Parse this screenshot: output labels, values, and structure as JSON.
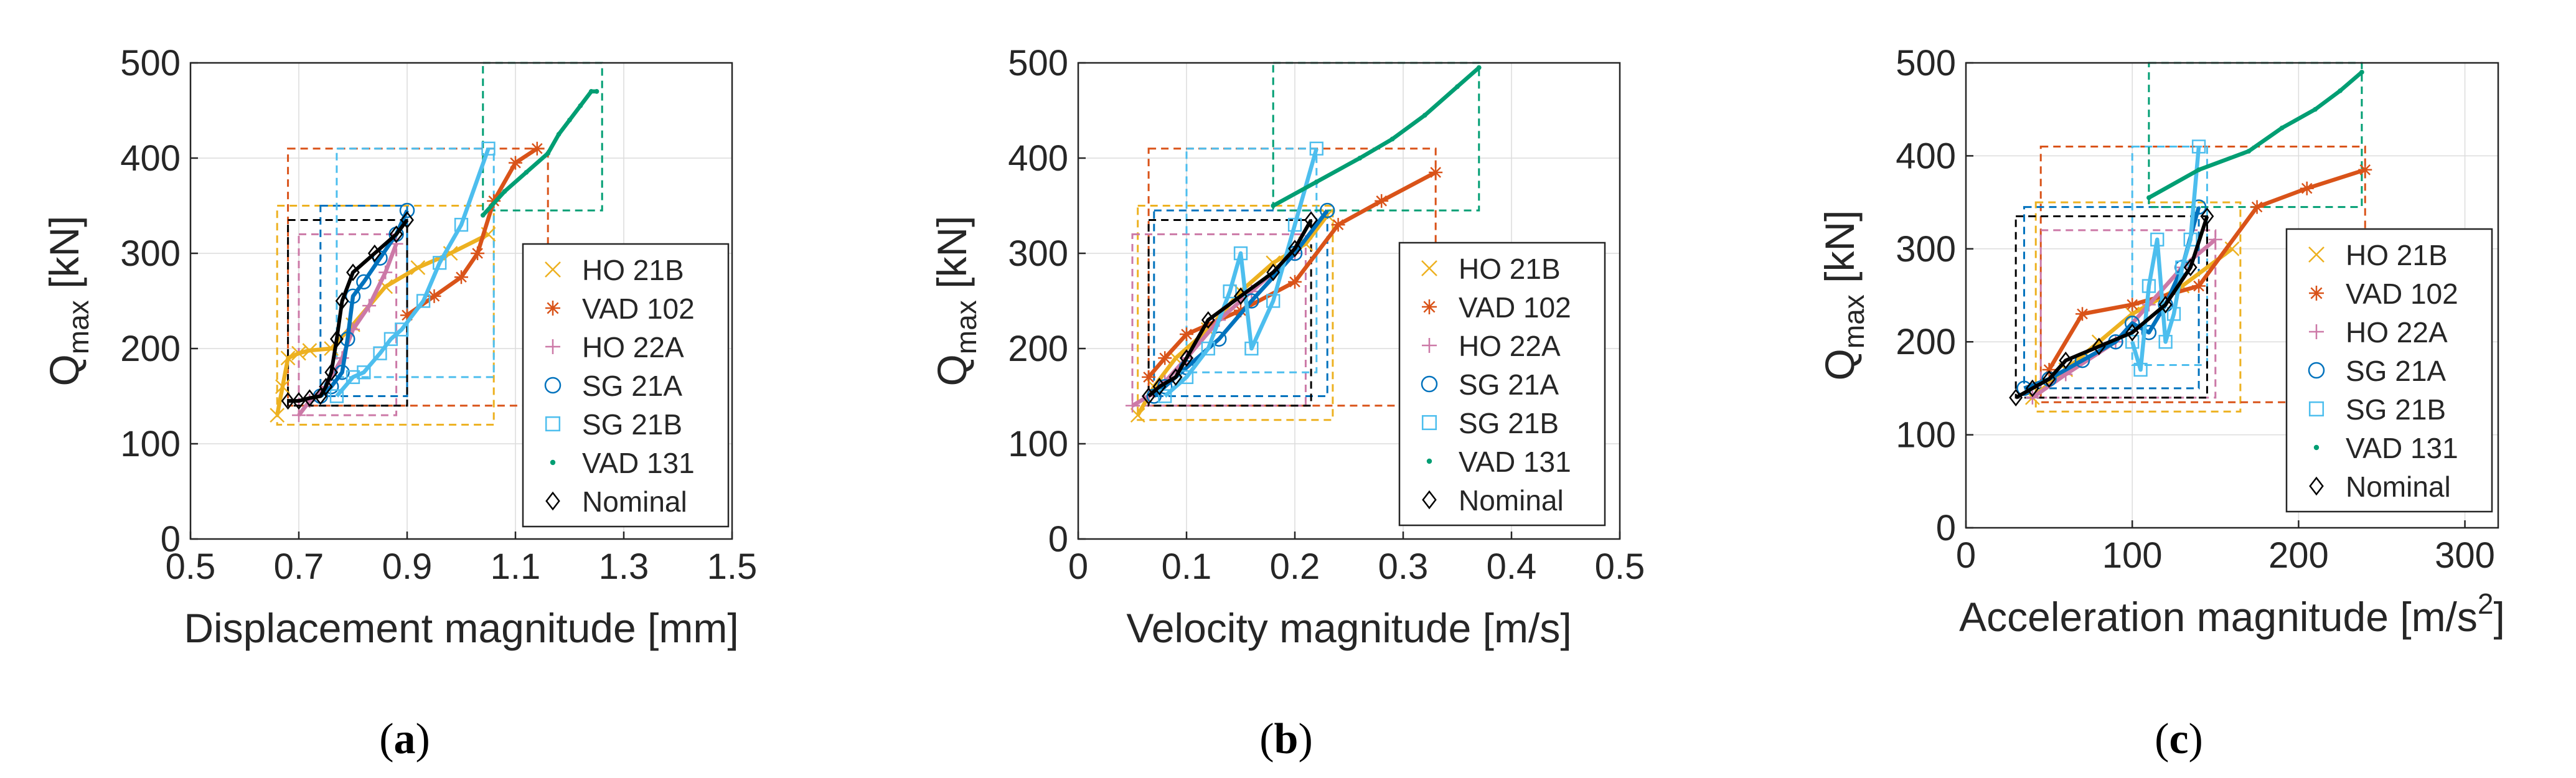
{
  "colors": {
    "HO 21B": "#EDB120",
    "VAD 102": "#D95319",
    "HO 22A": "#CC79A7",
    "SG 21A": "#0072BD",
    "SG 21B": "#4DBEEE",
    "VAD 131": "#009E73",
    "Nominal": "#000000",
    "axis": "#262626",
    "grid": "#dcdcdc"
  },
  "chart_data": [
    {
      "type": "line",
      "panel": "a",
      "caption": {
        "pre": "(",
        "letter": "a",
        "post": ")"
      },
      "ylabel": {
        "main": "Q",
        "sub": "max",
        "unit": " [kN]"
      },
      "xlabel": "Displacement magnitude [mm]",
      "xlim": [
        0.5,
        1.5
      ],
      "ylim": [
        0,
        500
      ],
      "xticks": [
        0.5,
        0.7,
        0.9,
        1.1,
        1.3,
        1.5
      ],
      "xtick_labels": [
        "0.5",
        "0.7",
        "0.9",
        "1.1",
        "1.3",
        "1.5"
      ],
      "yticks": [
        0,
        100,
        200,
        300,
        400,
        500
      ],
      "ytick_labels": [
        "0",
        "100",
        "200",
        "300",
        "400",
        "500"
      ],
      "grid": true,
      "legend_position": "lower-right",
      "series": [
        {
          "name": "HO 21B",
          "marker": "x",
          "x": [
            0.66,
            0.67,
            0.68,
            0.7,
            0.72,
            0.76,
            0.8,
            0.86,
            0.92,
            0.98,
            1.05
          ],
          "y": [
            130,
            160,
            190,
            195,
            198,
            200,
            225,
            265,
            285,
            300,
            320
          ],
          "box": [
            0.66,
            1.06,
            120,
            350
          ]
        },
        {
          "name": "VAD 102",
          "marker": "asterisk",
          "x": [
            0.9,
            0.95,
            1.0,
            1.03,
            1.06,
            1.1,
            1.14
          ],
          "y": [
            235,
            255,
            275,
            300,
            355,
            395,
            410
          ],
          "box": [
            0.68,
            1.16,
            140,
            410
          ]
        },
        {
          "name": "HO 22A",
          "marker": "plus",
          "x": [
            0.7,
            0.72,
            0.75,
            0.78,
            0.8,
            0.83,
            0.86,
            0.88
          ],
          "y": [
            130,
            145,
            160,
            190,
            220,
            245,
            280,
            310
          ],
          "box": [
            0.7,
            0.88,
            130,
            320
          ]
        },
        {
          "name": "SG 21A",
          "marker": "circle",
          "x": [
            0.74,
            0.76,
            0.78,
            0.79,
            0.8,
            0.82,
            0.85,
            0.88,
            0.9
          ],
          "y": [
            150,
            160,
            175,
            210,
            255,
            270,
            295,
            320,
            345
          ],
          "box": [
            0.74,
            0.9,
            150,
            350
          ]
        },
        {
          "name": "SG 21B",
          "marker": "square",
          "x": [
            0.77,
            0.8,
            0.82,
            0.85,
            0.87,
            0.89,
            0.93,
            0.96,
            1.0,
            1.05
          ],
          "y": [
            150,
            170,
            175,
            195,
            210,
            220,
            250,
            290,
            330,
            410
          ],
          "box": [
            0.77,
            1.06,
            170,
            410
          ]
        },
        {
          "name": "VAD 131",
          "marker": "dot",
          "x": [
            1.04,
            1.08,
            1.12,
            1.16,
            1.18,
            1.2,
            1.22,
            1.24,
            1.25
          ],
          "y": [
            340,
            365,
            385,
            405,
            425,
            440,
            455,
            470,
            470
          ],
          "box": [
            1.04,
            1.26,
            345,
            500
          ]
        },
        {
          "name": "Nominal",
          "marker": "diamond",
          "x": [
            0.68,
            0.7,
            0.72,
            0.74,
            0.75,
            0.76,
            0.77,
            0.78,
            0.8,
            0.84,
            0.88,
            0.9
          ],
          "y": [
            145,
            145,
            148,
            150,
            160,
            175,
            210,
            250,
            280,
            300,
            320,
            335
          ],
          "box": [
            0.68,
            0.9,
            140,
            335
          ]
        }
      ]
    },
    {
      "type": "line",
      "panel": "b",
      "caption": {
        "pre": "(",
        "letter": "b",
        "post": ")"
      },
      "ylabel": {
        "main": "Q",
        "sub": "max",
        "unit": " [kN]"
      },
      "xlabel": "Velocity magnitude [m/s]",
      "xlim": [
        0,
        0.5
      ],
      "ylim": [
        0,
        500
      ],
      "xticks": [
        0,
        0.1,
        0.2,
        0.3,
        0.4,
        0.5
      ],
      "xtick_labels": [
        "0",
        "0.1",
        "0.2",
        "0.3",
        "0.4",
        "0.5"
      ],
      "yticks": [
        0,
        100,
        200,
        300,
        400,
        500
      ],
      "ytick_labels": [
        "0",
        "100",
        "200",
        "300",
        "400",
        "500"
      ],
      "grid": true,
      "legend_position": "lower-right",
      "series": [
        {
          "name": "HO 21B",
          "marker": "x",
          "x": [
            0.055,
            0.07,
            0.09,
            0.12,
            0.15,
            0.18,
            0.21,
            0.23
          ],
          "y": [
            130,
            160,
            190,
            220,
            260,
            290,
            310,
            340
          ],
          "box": [
            0.055,
            0.235,
            125,
            350
          ]
        },
        {
          "name": "VAD 102",
          "marker": "asterisk",
          "x": [
            0.065,
            0.08,
            0.1,
            0.15,
            0.2,
            0.24,
            0.28,
            0.33
          ],
          "y": [
            170,
            190,
            215,
            240,
            270,
            330,
            355,
            385
          ],
          "box": [
            0.065,
            0.33,
            140,
            410
          ]
        },
        {
          "name": "HO 22A",
          "marker": "plus",
          "x": [
            0.05,
            0.065,
            0.08,
            0.1,
            0.13,
            0.16,
            0.2
          ],
          "y": [
            140,
            150,
            165,
            190,
            230,
            260,
            300
          ],
          "box": [
            0.05,
            0.21,
            140,
            320
          ]
        },
        {
          "name": "SG 21A",
          "marker": "circle",
          "x": [
            0.07,
            0.08,
            0.1,
            0.13,
            0.16,
            0.2,
            0.23
          ],
          "y": [
            150,
            160,
            180,
            210,
            250,
            300,
            345
          ],
          "box": [
            0.07,
            0.23,
            150,
            345
          ]
        },
        {
          "name": "SG 21B",
          "marker": "square",
          "x": [
            0.08,
            0.1,
            0.12,
            0.14,
            0.15,
            0.16,
            0.18,
            0.2,
            0.22
          ],
          "y": [
            150,
            170,
            200,
            260,
            300,
            200,
            250,
            330,
            410
          ],
          "box": [
            0.1,
            0.22,
            175,
            410
          ]
        },
        {
          "name": "VAD 131",
          "marker": "dot",
          "x": [
            0.18,
            0.22,
            0.26,
            0.29,
            0.32,
            0.35,
            0.37
          ],
          "y": [
            350,
            375,
            400,
            420,
            445,
            475,
            495
          ],
          "box": [
            0.18,
            0.37,
            345,
            500
          ]
        },
        {
          "name": "Nominal",
          "marker": "diamond",
          "x": [
            0.065,
            0.075,
            0.09,
            0.1,
            0.12,
            0.15,
            0.18,
            0.2,
            0.215
          ],
          "y": [
            150,
            160,
            170,
            190,
            230,
            255,
            280,
            305,
            335
          ],
          "box": [
            0.065,
            0.215,
            140,
            335
          ]
        }
      ]
    },
    {
      "type": "line",
      "panel": "c",
      "caption": {
        "pre": "(",
        "letter": "c",
        "post": ")"
      },
      "ylabel": {
        "main": "Q",
        "sub": "max",
        "unit": " [kN]"
      },
      "xlabel": {
        "main": "Acceleration magnitude [m/s",
        "sup": "2",
        "end": "]"
      },
      "xlim": [
        0,
        320
      ],
      "ylim": [
        0,
        500
      ],
      "xticks": [
        0,
        100,
        200,
        300
      ],
      "xtick_labels": [
        "0",
        "100",
        "200",
        "300"
      ],
      "yticks": [
        0,
        100,
        200,
        300,
        400,
        500
      ],
      "ytick_labels": [
        "0",
        "100",
        "200",
        "300",
        "400",
        "500"
      ],
      "grid": true,
      "legend_position": "lower-right",
      "series": [
        {
          "name": "HO 21B",
          "marker": "x",
          "x": [
            40,
            60,
            80,
            100,
            130,
            160
          ],
          "y": [
            140,
            170,
            200,
            230,
            260,
            300
          ],
          "box": [
            42,
            165,
            125,
            350
          ]
        },
        {
          "name": "VAD 102",
          "marker": "asterisk",
          "x": [
            50,
            70,
            100,
            140,
            175,
            205,
            240
          ],
          "y": [
            170,
            230,
            240,
            260,
            345,
            365,
            385
          ],
          "box": [
            45,
            240,
            135,
            410
          ]
        },
        {
          "name": "HO 22A",
          "marker": "plus",
          "x": [
            40,
            60,
            90,
            110,
            130,
            150
          ],
          "y": [
            140,
            165,
            200,
            240,
            280,
            310
          ],
          "box": [
            45,
            150,
            140,
            320
          ]
        },
        {
          "name": "SG 21A",
          "marker": "circle",
          "x": [
            35,
            50,
            70,
            90,
            100,
            110,
            120,
            130,
            140
          ],
          "y": [
            150,
            160,
            180,
            200,
            220,
            210,
            240,
            280,
            345
          ],
          "box": [
            35,
            140,
            150,
            345
          ]
        },
        {
          "name": "SG 21B",
          "marker": "square",
          "x": [
            100,
            105,
            110,
            115,
            120,
            125,
            130,
            135,
            140
          ],
          "y": [
            200,
            170,
            260,
            310,
            200,
            230,
            280,
            310,
            410
          ],
          "box": [
            100,
            145,
            175,
            410
          ]
        },
        {
          "name": "VAD 131",
          "marker": "dot",
          "x": [
            110,
            140,
            170,
            190,
            210,
            225,
            238
          ],
          "y": [
            355,
            385,
            405,
            430,
            450,
            470,
            490
          ],
          "box": [
            110,
            238,
            345,
            500
          ]
        },
        {
          "name": "Nominal",
          "marker": "diamond",
          "x": [
            30,
            40,
            50,
            60,
            80,
            100,
            120,
            135,
            145
          ],
          "y": [
            140,
            150,
            160,
            180,
            195,
            210,
            240,
            280,
            335
          ],
          "box": [
            30,
            145,
            140,
            335
          ]
        }
      ]
    }
  ]
}
